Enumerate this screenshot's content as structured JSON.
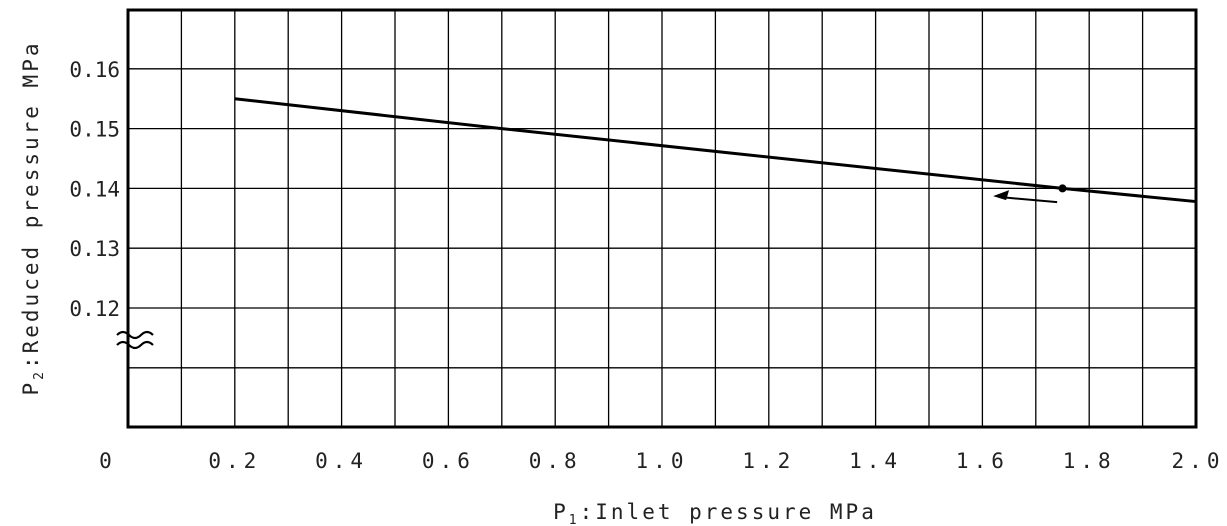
{
  "chart_data": {
    "type": "line",
    "title": "",
    "xlabel": {
      "symbol": "P",
      "subscript": "1",
      "text": ":Inlet pressure MPa"
    },
    "ylabel": {
      "symbol": "P",
      "subscript": "2",
      "text": ":Reduced pressure MPa"
    },
    "xlim": [
      0,
      2.0
    ],
    "ylim": [
      0.11,
      0.17
    ],
    "y_axis_break": true,
    "grid": true,
    "x_ticks": [
      {
        "value": 0,
        "label": "0"
      },
      {
        "value": 0.2,
        "label": "0.2"
      },
      {
        "value": 0.4,
        "label": "0.4"
      },
      {
        "value": 0.6,
        "label": "0.6"
      },
      {
        "value": 0.8,
        "label": "0.8"
      },
      {
        "value": 1.0,
        "label": "1.0"
      },
      {
        "value": 1.2,
        "label": "1.2"
      },
      {
        "value": 1.4,
        "label": "1.4"
      },
      {
        "value": 1.6,
        "label": "1.6"
      },
      {
        "value": 1.8,
        "label": "1.8"
      },
      {
        "value": 2.0,
        "label": "2.0"
      }
    ],
    "y_ticks": [
      {
        "value": 0.12,
        "label": "0.12"
      },
      {
        "value": 0.13,
        "label": "0.13"
      },
      {
        "value": 0.14,
        "label": "0.14"
      },
      {
        "value": 0.15,
        "label": "0.15"
      },
      {
        "value": 0.16,
        "label": "0.16"
      }
    ],
    "series": [
      {
        "x": [
          0.2,
          0.7,
          1.75,
          2.0
        ],
        "y": [
          0.155,
          0.15,
          0.14,
          0.1378
        ]
      }
    ],
    "marker": {
      "x": 1.75,
      "y": 0.14
    },
    "arrow": {
      "from": {
        "x": 1.74,
        "y": 0.1377
      },
      "to": {
        "x": 1.62,
        "y": 0.1387
      }
    }
  }
}
